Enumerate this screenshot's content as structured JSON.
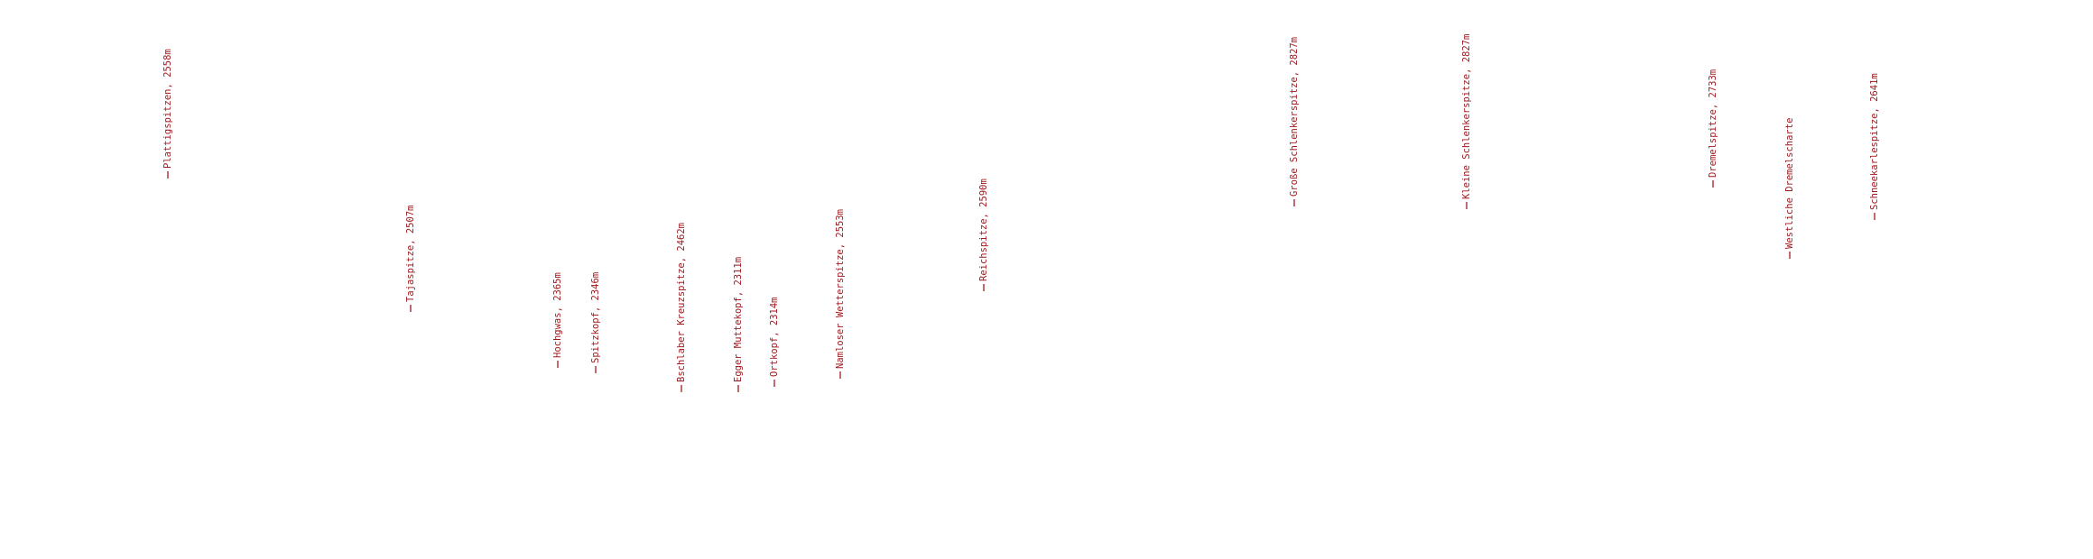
{
  "labels": [
    "Plattigspitzen, 2558m",
    "Tajaspitze, 2507m",
    "Hochgwas, 2365m",
    "Spitzkopf, 2346m",
    "Bschlaber Kreuzspitze, 2462m",
    "Egger Muttekopf, 2311m",
    "Ortkopf, 2314m",
    "Namloser Wetterspitze, 2553m",
    "Reichspitze, 2590m",
    "Große Schlenkerspitze, 2827m",
    "Kleine Schlenkerspitze, 2827m",
    "Dremelspitze, 2733m",
    "Westliche Dremelscharte",
    "Schneekarlespitze, 2641m"
  ]
}
